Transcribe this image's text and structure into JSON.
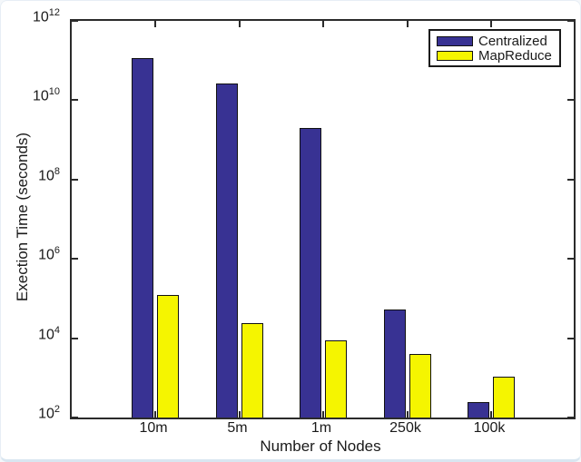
{
  "chart_data": {
    "type": "bar",
    "title": "",
    "xlabel": "Number of Nodes",
    "ylabel": "Exection Time (seconds)",
    "yscale": "log",
    "ylim": [
      100,
      1000000000000
    ],
    "ytick_exponents": [
      12,
      10,
      8,
      6,
      4,
      2
    ],
    "ytick_base": "10",
    "categories": [
      "10m",
      "5m",
      "1m",
      "250k",
      "100k"
    ],
    "series": [
      {
        "name": "Centralized",
        "color": "#383293",
        "values": [
          115000000000,
          27000000000,
          2000000000,
          52000,
          240
        ]
      },
      {
        "name": "MapReduce",
        "color": "#F5F500",
        "values": [
          120000,
          24000,
          9000,
          4000,
          1050
        ]
      }
    ],
    "legend": {
      "position": "top-right",
      "entries": [
        "Centralized",
        "MapReduce"
      ]
    },
    "grid": false
  },
  "colors": {
    "axis": "#2b2b2b",
    "text": "#1a1a1a",
    "background": "#ffffff",
    "bar_outline": "#111111"
  }
}
